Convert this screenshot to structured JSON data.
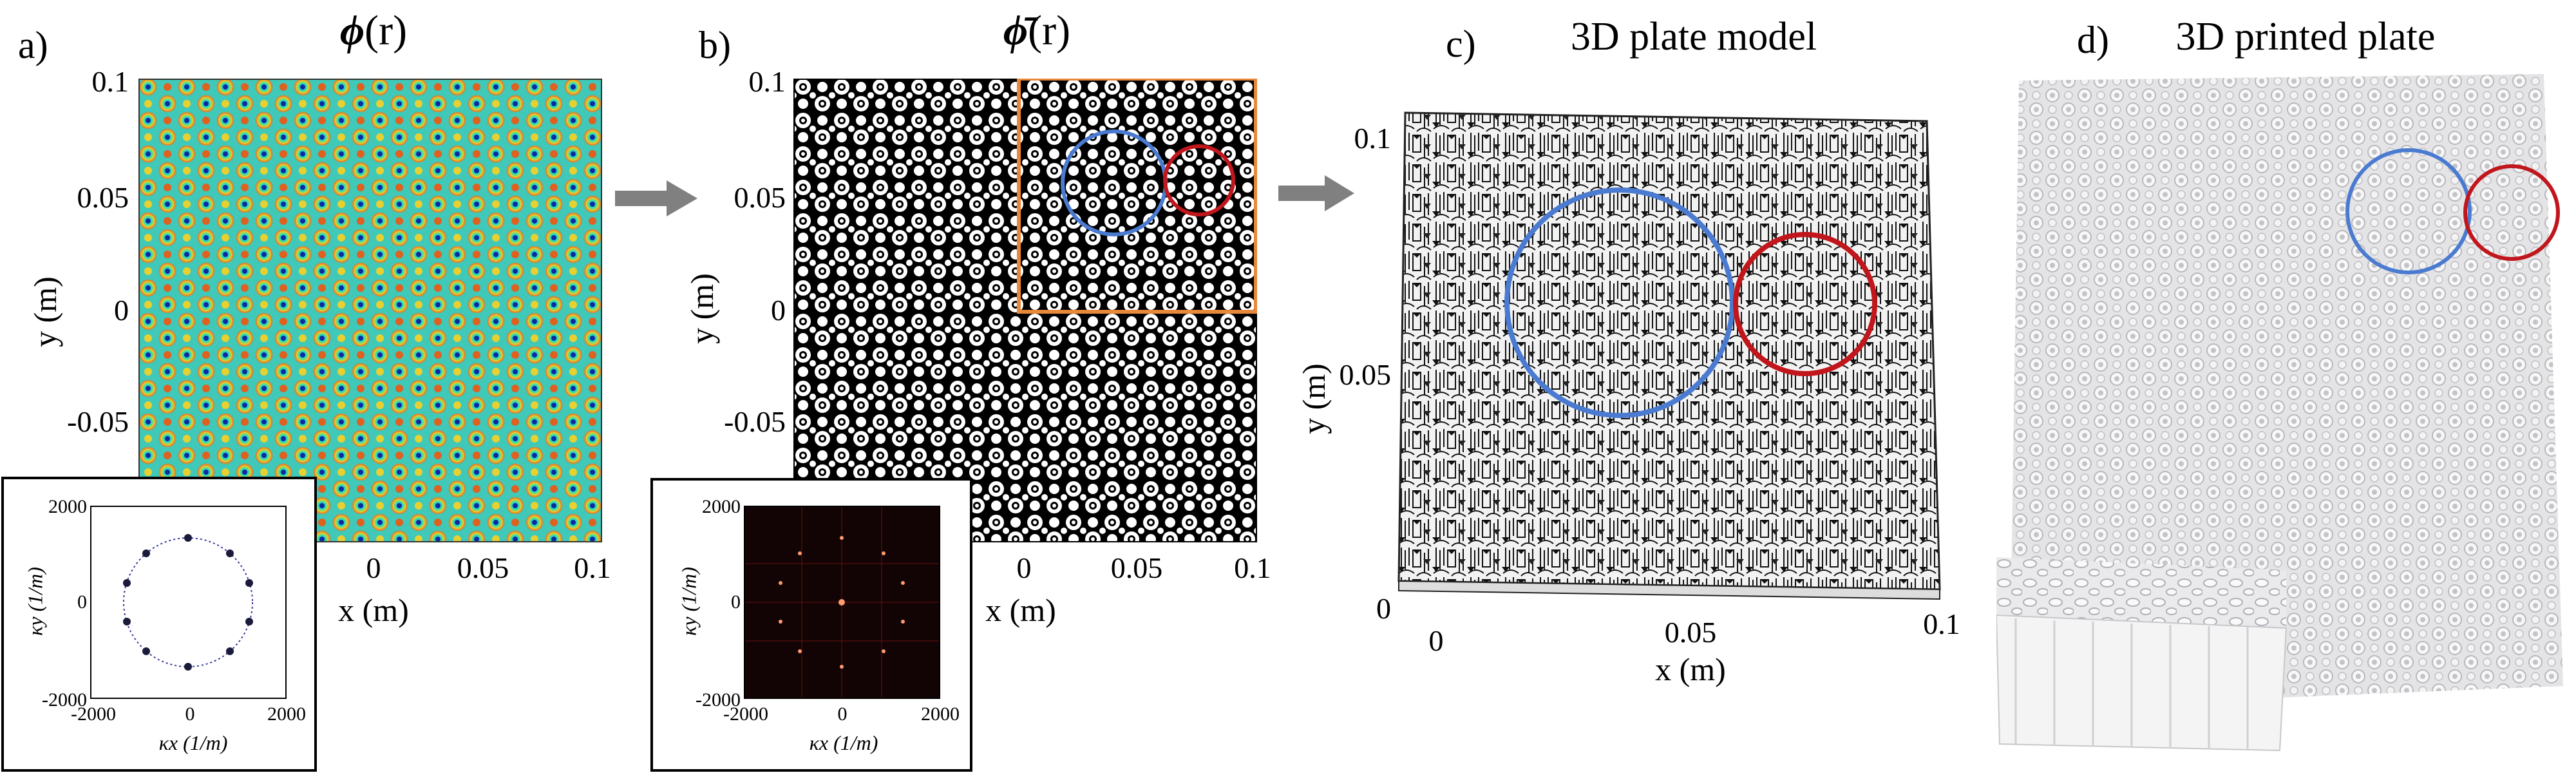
{
  "panels": {
    "a": {
      "letter": "a)",
      "title_symbol": "ϕ",
      "title_arg": "(r)",
      "yticks": [
        "0.1",
        "0.05",
        "0",
        "-0.05"
      ],
      "xticks": [
        "0",
        "0.05",
        "0.1"
      ],
      "ylabel": "y (m)",
      "xlabel": "x (m)",
      "inset": {
        "yticks": [
          "2000",
          "0",
          "-2000"
        ],
        "xticks": [
          "-2000",
          "0",
          "2000"
        ],
        "ylabel": "κy (1/m)",
        "xlabel": "κx (1/m)"
      }
    },
    "b": {
      "letter": "b)",
      "title_symbol": "ϕ̄",
      "title_arg": "(r)",
      "yticks": [
        "0.1",
        "0.05",
        "0",
        "-0.05"
      ],
      "xticks": [
        "0",
        "0.05",
        "0.1"
      ],
      "ylabel": "y (m)",
      "xlabel": "x (m)",
      "inset": {
        "yticks": [
          "2000",
          "0",
          "-2000"
        ],
        "xticks": [
          "-2000",
          "0",
          "2000"
        ],
        "ylabel": "κy (1/m)",
        "xlabel": "κx (1/m)"
      }
    },
    "c": {
      "letter": "c)",
      "title": "3D plate model",
      "yticks": [
        "0.1",
        "0.05",
        "0"
      ],
      "xticks": [
        "0",
        "0.05",
        "0.1"
      ],
      "ylabel": "y (m)",
      "xlabel": "x (m)"
    },
    "d": {
      "letter": "d)",
      "title": "3D printed plate"
    }
  },
  "colors": {
    "blue_circle": "#4a7bd0",
    "red_circle": "#c0161c",
    "orange_box": "#e8883a",
    "arrow": "#808080",
    "inset_dots": "#1a1a3a",
    "inset_ring": "#3a3aa0"
  }
}
